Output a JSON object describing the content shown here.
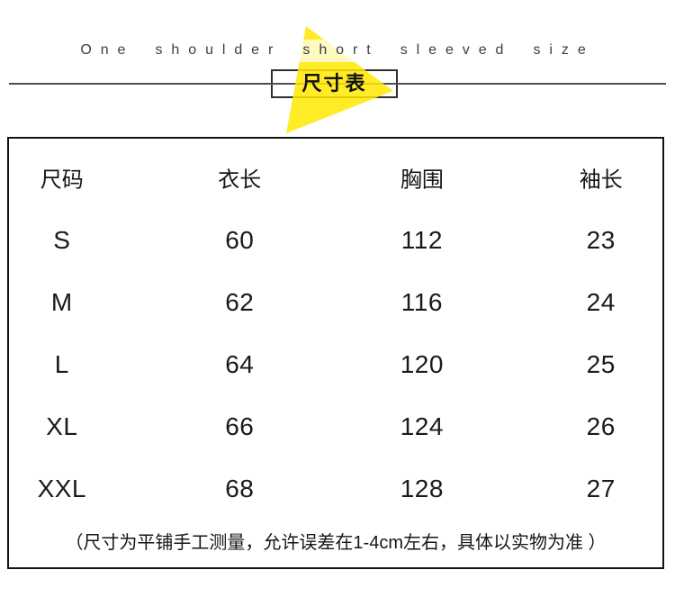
{
  "header": {
    "subtitle_en": "One shoulder short sleeved size",
    "badge_label": "尺寸表"
  },
  "chart_data": {
    "type": "table",
    "title": "尺寸表",
    "columns": [
      "尺码",
      "衣长",
      "胸围",
      "袖长"
    ],
    "rows": [
      [
        "S",
        "60",
        "112",
        "23"
      ],
      [
        "M",
        "62",
        "116",
        "24"
      ],
      [
        "L",
        "64",
        "120",
        "25"
      ],
      [
        "XL",
        "66",
        "124",
        "26"
      ],
      [
        "XXL",
        "68",
        "128",
        "27"
      ]
    ],
    "note": "（尺寸为平铺手工测量，允许误差在1-4cm左右，具体以实物为准 ）"
  },
  "colors": {
    "accent_yellow": "#ffe800",
    "table_border": "#141414",
    "divider_gray": "#4f4f4f"
  }
}
